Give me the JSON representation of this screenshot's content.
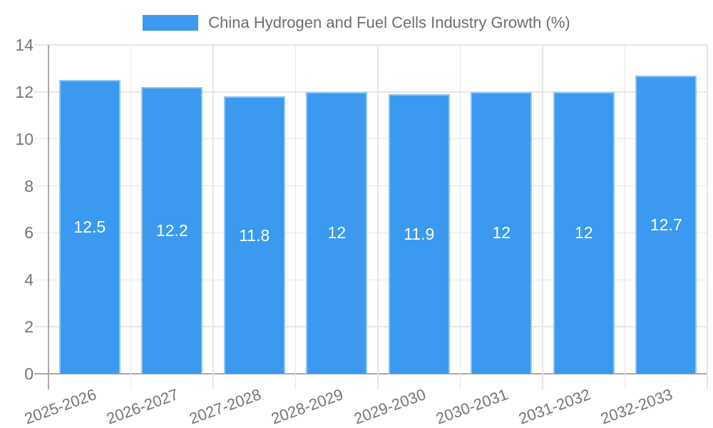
{
  "chart_data": {
    "type": "bar",
    "series_name": "China Hydrogen and Fuel Cells Industry Growth (%)",
    "categories": [
      "2025-2026",
      "2026-2027",
      "2027-2028",
      "2028-2029",
      "2029-2030",
      "2030-2031",
      "2031-2032",
      "2032-2033"
    ],
    "values": [
      12.5,
      12.2,
      11.8,
      12,
      11.9,
      12,
      12,
      12.7
    ],
    "value_labels": [
      "12.5",
      "12.2",
      "11.8",
      "12",
      "11.9",
      "12",
      "12",
      "12.7"
    ],
    "xlabel": "",
    "ylabel": "",
    "ylim": [
      0,
      14
    ],
    "yticks": [
      0,
      2,
      4,
      6,
      8,
      10,
      12,
      14
    ],
    "grid": true,
    "legend_position": "top",
    "colors": {
      "bar_fill": "#3b9af0",
      "bar_border": "#8fc6f7",
      "grid_line": "#e7e7e7",
      "axis_line": "#a9a9a9",
      "tick_label": "#757575",
      "legend_text": "#6e6e6e",
      "value_label": "#ffffff"
    }
  }
}
